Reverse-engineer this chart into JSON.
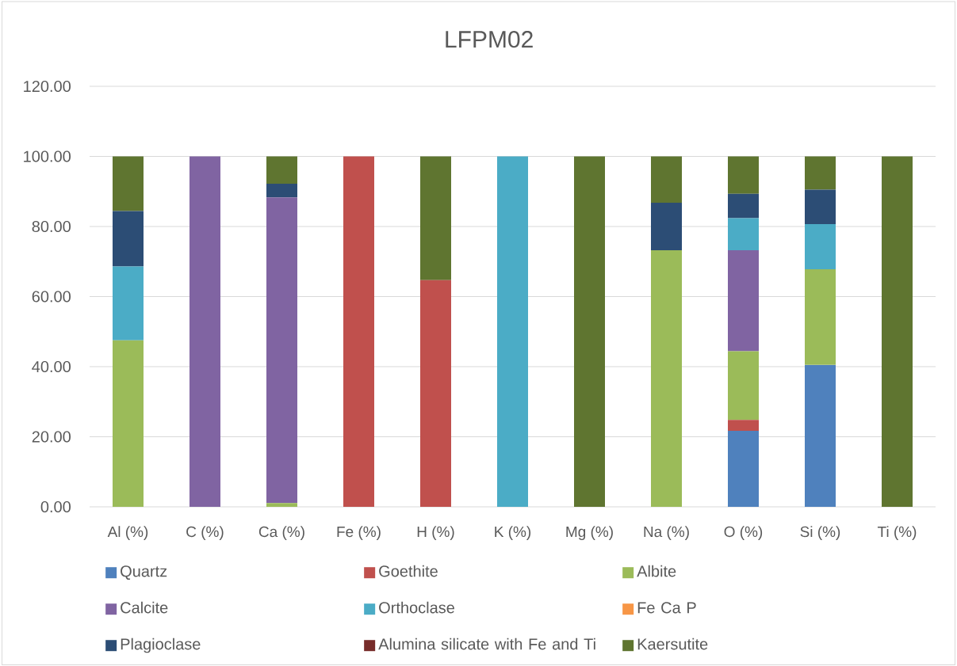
{
  "chart_data": {
    "type": "bar",
    "title": "LFPM02",
    "stacked": true,
    "categories": [
      "Al (%)",
      "C (%)",
      "Ca (%)",
      "Fe (%)",
      "H (%)",
      "K (%)",
      "Mg (%)",
      "Na (%)",
      "O (%)",
      "Si (%)",
      "Ti (%)"
    ],
    "series": [
      {
        "name": "Quartz",
        "color": "#4f81bd",
        "values": [
          0,
          0,
          0,
          0,
          0,
          0,
          0,
          0,
          21.7,
          40.5,
          0
        ]
      },
      {
        "name": "Goethite",
        "color": "#c0504d",
        "values": [
          0,
          0,
          0,
          100,
          64.7,
          0,
          0,
          0,
          3.1,
          0,
          0
        ]
      },
      {
        "name": "Albite",
        "color": "#9bbb59",
        "values": [
          47.5,
          0,
          1.1,
          0,
          0,
          0,
          0,
          73.2,
          19.6,
          27.3,
          0
        ]
      },
      {
        "name": "Calcite",
        "color": "#8064a2",
        "values": [
          0,
          100,
          87.2,
          0,
          0,
          0,
          0,
          0,
          28.8,
          0,
          0
        ]
      },
      {
        "name": "Orthoclase",
        "color": "#4bacc6",
        "values": [
          21.1,
          0,
          0,
          0,
          0,
          100,
          0,
          0,
          9.2,
          12.9,
          0
        ]
      },
      {
        "name": "Fe Ca P",
        "color": "#f79646",
        "values": [
          0,
          0,
          0,
          0,
          0,
          0,
          0,
          0,
          0,
          0,
          0
        ]
      },
      {
        "name": "Plagioclase",
        "color": "#2c4d75",
        "values": [
          15.8,
          0,
          3.9,
          0,
          0,
          0,
          0,
          13.6,
          6.9,
          9.8,
          0
        ]
      },
      {
        "name": "Alumina silicate with Fe and Ti",
        "color": "#772c2a",
        "values": [
          0,
          0,
          0,
          0,
          0,
          0,
          0,
          0,
          0,
          0,
          0
        ]
      },
      {
        "name": "Kaersutite",
        "color": "#5f7530",
        "values": [
          15.6,
          0,
          7.8,
          0,
          35.3,
          0,
          100,
          13.2,
          10.7,
          9.5,
          100
        ]
      }
    ],
    "ylim": [
      0,
      120
    ],
    "yticks": [
      {
        "value": 0,
        "label": "0.00"
      },
      {
        "value": 20,
        "label": "20.00"
      },
      {
        "value": 40,
        "label": "40.00"
      },
      {
        "value": 60,
        "label": "60.00"
      },
      {
        "value": 80,
        "label": "80.00"
      },
      {
        "value": 100,
        "label": "100.00"
      },
      {
        "value": 120,
        "label": "120.00"
      }
    ],
    "grid": "y",
    "legend": "bottom"
  }
}
